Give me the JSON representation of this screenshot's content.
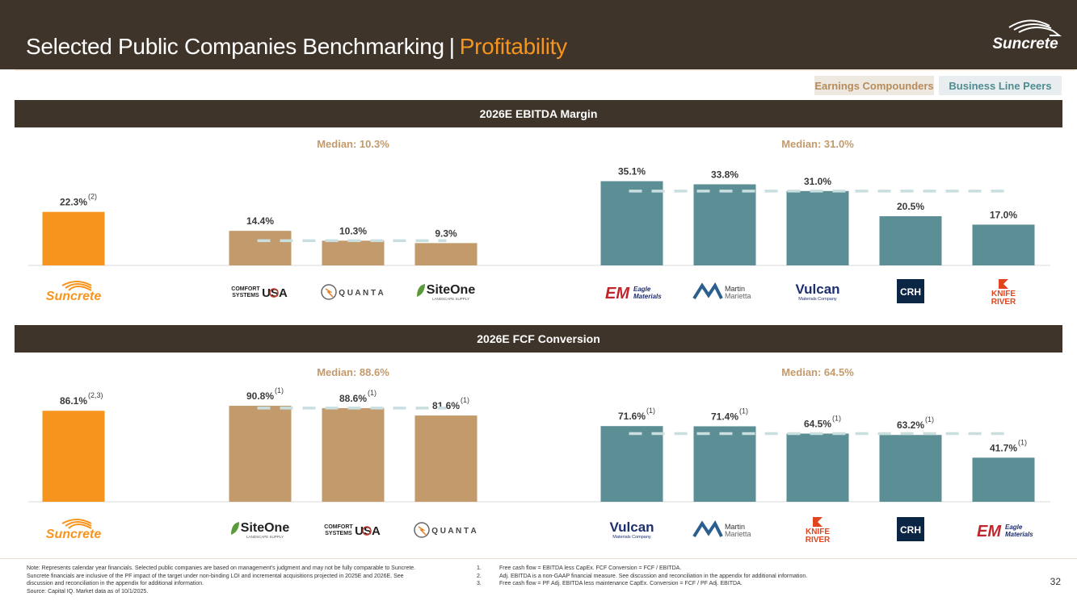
{
  "header": {
    "title_main": "Selected Public Companies Benchmarking",
    "title_sep": "|",
    "title_accent": "Profitability",
    "logo_text": "Suncrete"
  },
  "legend": {
    "earnings_compounders": "Earnings Compounders",
    "business_line_peers": "Business Line Peers"
  },
  "colors": {
    "suncrete": "#f7941d",
    "earnings_compounders": "#c39a6b",
    "business_line_peers": "#5b8f95",
    "header_band": "#3f3429",
    "median_line": "#c9dedf"
  },
  "chart_data": [
    {
      "type": "bar",
      "title": "2026E EBITDA Margin",
      "unit": "%",
      "groups": [
        {
          "name": "",
          "median_label": "",
          "bars": [
            {
              "company": "Suncrete",
              "value": 22.3,
              "label": "22.3%",
              "note": "(2)",
              "color_key": "suncrete"
            }
          ]
        },
        {
          "name": "Earnings Compounders",
          "median_label": "Median: 10.3%",
          "median": 10.3,
          "bars": [
            {
              "company": "Comfort Systems USA",
              "value": 14.4,
              "label": "14.4%",
              "note": "",
              "color_key": "earnings_compounders"
            },
            {
              "company": "Quanta",
              "value": 10.3,
              "label": "10.3%",
              "note": "",
              "color_key": "earnings_compounders"
            },
            {
              "company": "SiteOne",
              "value": 9.3,
              "label": "9.3%",
              "note": "",
              "color_key": "earnings_compounders"
            }
          ]
        },
        {
          "name": "Business Line Peers",
          "median_label": "Median: 31.0%",
          "median": 31.0,
          "bars": [
            {
              "company": "Eagle Materials",
              "value": 35.1,
              "label": "35.1%",
              "note": "",
              "color_key": "business_line_peers"
            },
            {
              "company": "Martin Marietta",
              "value": 33.8,
              "label": "33.8%",
              "note": "",
              "color_key": "business_line_peers"
            },
            {
              "company": "Vulcan Materials Company",
              "value": 31.0,
              "label": "31.0%",
              "note": "",
              "color_key": "business_line_peers"
            },
            {
              "company": "CRH",
              "value": 20.5,
              "label": "20.5%",
              "note": "",
              "color_key": "business_line_peers"
            },
            {
              "company": "Knife River",
              "value": 17.0,
              "label": "17.0%",
              "note": "",
              "color_key": "business_line_peers"
            }
          ]
        }
      ]
    },
    {
      "type": "bar",
      "title": "2026E FCF Conversion",
      "unit": "%",
      "groups": [
        {
          "name": "",
          "median_label": "",
          "bars": [
            {
              "company": "Suncrete",
              "value": 86.1,
              "label": "86.1%",
              "note": "(2,3)",
              "color_key": "suncrete"
            }
          ]
        },
        {
          "name": "Earnings Compounders",
          "median_label": "Median: 88.6%",
          "median": 88.6,
          "bars": [
            {
              "company": "SiteOne",
              "value": 90.8,
              "label": "90.8%",
              "note": "(1)",
              "color_key": "earnings_compounders"
            },
            {
              "company": "Comfort Systems USA",
              "value": 88.6,
              "label": "88.6%",
              "note": "(1)",
              "color_key": "earnings_compounders"
            },
            {
              "company": "Quanta",
              "value": 81.6,
              "label": "81.6%",
              "note": "(1)",
              "color_key": "earnings_compounders"
            }
          ]
        },
        {
          "name": "Business Line Peers",
          "median_label": "Median: 64.5%",
          "median": 64.5,
          "bars": [
            {
              "company": "Vulcan Materials Company",
              "value": 71.6,
              "label": "71.6%",
              "note": "(1)",
              "color_key": "business_line_peers"
            },
            {
              "company": "Martin Marietta",
              "value": 71.4,
              "label": "71.4%",
              "note": "(1)",
              "color_key": "business_line_peers"
            },
            {
              "company": "Knife River",
              "value": 64.5,
              "label": "64.5%",
              "note": "(1)",
              "color_key": "business_line_peers"
            },
            {
              "company": "CRH",
              "value": 63.2,
              "label": "63.2%",
              "note": "(1)",
              "color_key": "business_line_peers"
            },
            {
              "company": "Eagle Materials",
              "value": 41.7,
              "label": "41.7%",
              "note": "(1)",
              "color_key": "business_line_peers"
            }
          ]
        }
      ]
    }
  ],
  "footer": {
    "note_lines": [
      "Note: Represents calendar year financials. Selected public companies are based on management's judgment and may not be fully comparable to Suncrete.",
      "Suncrete financials are inclusive of the PF impact of the target under non-binding LOI and incremental acquisitions projected in 2025E and 2026E. See",
      "discussion and reconciliation in the appendix for additional information.",
      "Source: Capital IQ. Market data as of 10/1/2025."
    ],
    "footnotes": [
      {
        "num": "1.",
        "text": "Free cash flow = EBITDA less CapEx. FCF Conversion = FCF / EBITDA."
      },
      {
        "num": "2.",
        "text": "Adj. EBITDA is a non-GAAP financial measure. See discussion and reconciliation in the appendix for additional information."
      },
      {
        "num": "3.",
        "text": "Free cash flow = PF Adj. EBITDA less maintenance CapEx. Conversion = FCF / PF Adj. EBITDA."
      }
    ],
    "page_number": "32"
  }
}
